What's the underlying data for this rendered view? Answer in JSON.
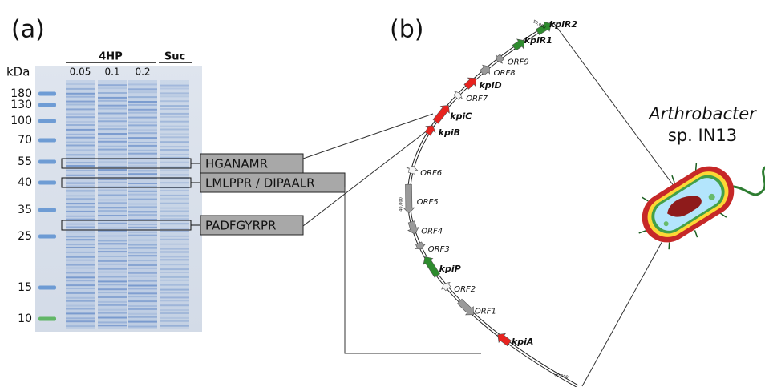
{
  "panel_a": {
    "label": "(a)",
    "unit": "kDa",
    "group_4hp": "4HP",
    "group_suc": "Suc",
    "concentrations": [
      "0.05",
      "0.1",
      "0.2"
    ],
    "markers": [
      "180",
      "130",
      "100",
      "70",
      "55",
      "40",
      "35",
      "25",
      "15",
      "10"
    ],
    "bands": [
      "HGANAMR",
      "LMLPPR / DIPAALR",
      "PADFGYRPR"
    ]
  },
  "panel_b": {
    "label": "(b)",
    "genes": [
      "kpiR2",
      "kpiR1",
      "ORF9",
      "ORF8",
      "kpiD",
      "ORF7",
      "kpiC",
      "kpiB",
      "ORF6",
      "ORF5",
      "ORF4",
      "ORF3",
      "kpiP",
      "ORF2",
      "ORF1",
      "kpiA"
    ],
    "scale": [
      "50,000",
      "40,000",
      "30,000"
    ],
    "organism": {
      "genus": "Arthrobacter",
      "strain": "sp. IN13"
    }
  }
}
